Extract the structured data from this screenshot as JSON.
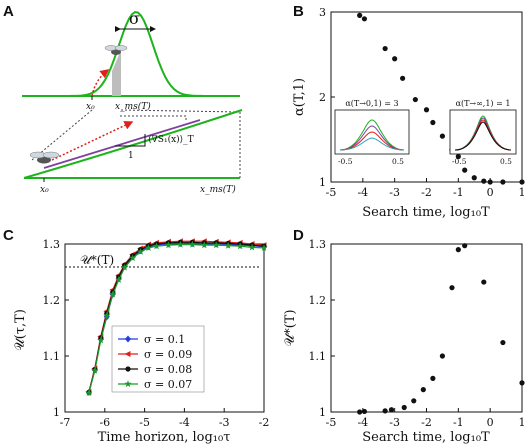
{
  "panel_labels": [
    "A",
    "B",
    "C",
    "D"
  ],
  "panelA": {
    "sigma_label": "σ",
    "x0_label": "x₀",
    "xms_label": "x_ms(T)",
    "x0_label2": "x₀",
    "xms_label2": "x_ms(T)",
    "slope_label": "⟨∇S₁(x)⟩_T",
    "one_label": "1",
    "colors": {
      "curve": "#1db31d",
      "arrow": "#e0201b",
      "line": "#8040a0"
    }
  },
  "chart_data": [
    {
      "panel": "B",
      "type": "scatter",
      "xlabel": "Search time, log₁₀T",
      "ylabel": "α(T,1)",
      "xlim": [
        -5,
        1
      ],
      "ylim": [
        1,
        3
      ],
      "xticks": [
        "-5",
        "-4",
        "-3",
        "-2",
        "-1",
        "0",
        "1"
      ],
      "yticks": [
        "1",
        "2",
        "3"
      ],
      "x": [
        -4.1,
        -3.95,
        -3.3,
        -3.0,
        -2.75,
        -2.35,
        -2.0,
        -1.8,
        -1.5,
        -1.2,
        -1.0,
        -0.8,
        -0.5,
        -0.2,
        0.0,
        0.4,
        1.0
      ],
      "y": [
        2.96,
        2.92,
        2.57,
        2.45,
        2.22,
        1.97,
        1.85,
        1.7,
        1.54,
        1.38,
        1.3,
        1.14,
        1.05,
        1.01,
        1.0,
        1.0,
        1.0
      ],
      "insets": [
        {
          "title": "α(T→0,1) = 3",
          "ticks": [
            "-0.5",
            "0.5"
          ]
        },
        {
          "title": "α(T→∞,1) = 1",
          "ticks": [
            "-0.5",
            "0.5"
          ]
        }
      ]
    },
    {
      "panel": "C",
      "type": "line",
      "xlabel": "Time horizon, log₁₀τ",
      "ylabel": "𝒰(τ,T)",
      "annotation": "𝒰*(T)",
      "xlim": [
        -7,
        -2
      ],
      "ylim": [
        1,
        1.3
      ],
      "xticks": [
        "-7",
        "-6",
        "-5",
        "-4",
        "-3",
        "-2"
      ],
      "yticks": [
        "1",
        "1.1",
        "1.2",
        "1.3"
      ],
      "x": [
        -6.4,
        -6.25,
        -6.1,
        -5.95,
        -5.8,
        -5.65,
        -5.5,
        -5.3,
        -5.1,
        -4.9,
        -4.7,
        -4.4,
        -4.1,
        -3.8,
        -3.5,
        -3.2,
        -2.9,
        -2.6,
        -2.3,
        -2.0
      ],
      "series": [
        {
          "name": "σ = 0.1",
          "color": "#1f3fe0",
          "marker": "diamond",
          "values": [
            1.035,
            1.075,
            1.13,
            1.17,
            1.21,
            1.238,
            1.26,
            1.277,
            1.288,
            1.295,
            1.298,
            1.3,
            1.301,
            1.301,
            1.3,
            1.3,
            1.299,
            1.298,
            1.297,
            1.295
          ]
        },
        {
          "name": "σ = 0.09",
          "color": "#e02020",
          "marker": "triangle",
          "values": [
            1.036,
            1.078,
            1.135,
            1.18,
            1.218,
            1.244,
            1.264,
            1.281,
            1.292,
            1.299,
            1.302,
            1.304,
            1.305,
            1.305,
            1.305,
            1.304,
            1.303,
            1.302,
            1.3,
            1.298
          ]
        },
        {
          "name": "σ = 0.08",
          "color": "#111111",
          "marker": "circle",
          "values": [
            1.035,
            1.076,
            1.132,
            1.176,
            1.214,
            1.241,
            1.262,
            1.279,
            1.29,
            1.297,
            1.3,
            1.302,
            1.303,
            1.303,
            1.302,
            1.302,
            1.301,
            1.3,
            1.298,
            1.296
          ]
        },
        {
          "name": "σ = 0.07",
          "color": "#1a9a2a",
          "marker": "star",
          "values": [
            1.034,
            1.074,
            1.128,
            1.172,
            1.21,
            1.236,
            1.258,
            1.275,
            1.286,
            1.293,
            1.296,
            1.298,
            1.299,
            1.299,
            1.298,
            1.298,
            1.297,
            1.296,
            1.294,
            1.293
          ]
        }
      ]
    },
    {
      "panel": "D",
      "type": "scatter",
      "xlabel": "Search time, log₁₀T",
      "ylabel": "𝒰*(T)",
      "xlim": [
        -5,
        1
      ],
      "ylim": [
        1,
        1.3
      ],
      "xticks": [
        "-5",
        "-4",
        "-3",
        "-2",
        "-1",
        "0",
        "1"
      ],
      "yticks": [
        "1",
        "1.1",
        "1.2",
        "1.3"
      ],
      "x": [
        -4.1,
        -3.95,
        -3.3,
        -3.1,
        -2.7,
        -2.4,
        -2.1,
        -1.8,
        -1.5,
        -1.2,
        -1.0,
        -0.8,
        -0.2,
        0.4,
        1.0
      ],
      "y": [
        1.0,
        1.001,
        1.002,
        1.004,
        1.008,
        1.02,
        1.04,
        1.06,
        1.1,
        1.222,
        1.29,
        1.297,
        1.232,
        1.124,
        1.052
      ]
    }
  ]
}
